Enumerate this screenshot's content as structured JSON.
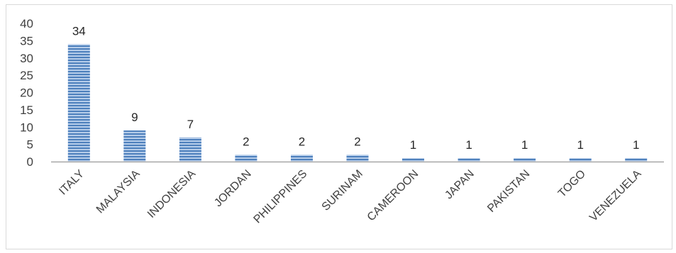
{
  "chart_data": {
    "type": "bar",
    "title": "",
    "xlabel": "",
    "ylabel": "",
    "categories": [
      "ITALY",
      "MALAYSIA",
      "INDONESIA",
      "JORDAN",
      "PHILIPPINES",
      "SURINAM",
      "CAMEROON",
      "JAPAN",
      "PAKISTAN",
      "TOGO",
      "VENEZUELA"
    ],
    "values": [
      34,
      9,
      7,
      2,
      2,
      2,
      1,
      1,
      1,
      1,
      1
    ],
    "data_labels": [
      "34",
      "9",
      "7",
      "2",
      "2",
      "2",
      "1",
      "1",
      "1",
      "1",
      "1"
    ],
    "ylim": [
      0,
      40
    ],
    "yticks": [
      "0",
      "5",
      "10",
      "15",
      "20",
      "25",
      "30",
      "35",
      "40"
    ],
    "grid": false,
    "legend": "none",
    "bar_color": "#4f81bd",
    "bar_stripe_color": "#c6d9f1",
    "axis_color": "#a6a6a6"
  }
}
